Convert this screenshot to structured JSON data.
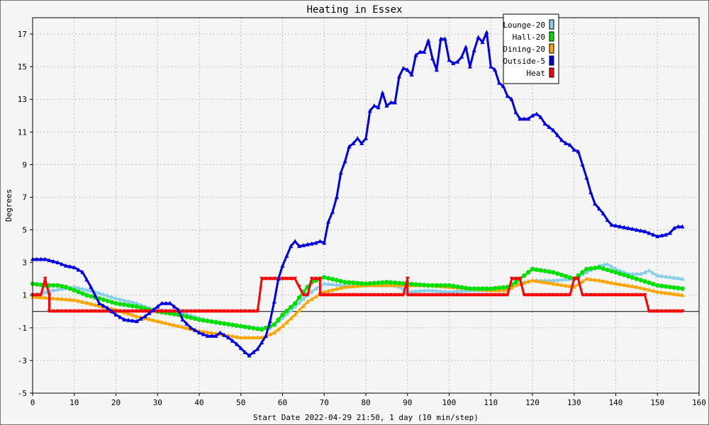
{
  "chart_data": {
    "type": "line",
    "title": "Heating in Essex",
    "ylabel": "Degrees",
    "xlabel": "Start Date 2022-04-29 21:50, 1 day (10 min/step)",
    "xlim": [
      0,
      160
    ],
    "ylim": [
      -5,
      18
    ],
    "xticks": [
      "0",
      "10",
      "20",
      "30",
      "40",
      "50",
      "60",
      "70",
      "80",
      "90",
      "100",
      "110",
      "120",
      "130",
      "140",
      "150",
      "160"
    ],
    "yticks": [
      "-5",
      "-3",
      "-1",
      "1",
      "3",
      "5",
      "7",
      "9",
      "11",
      "13",
      "15",
      "17"
    ],
    "grid": true,
    "legend_position": "top-right",
    "series": [
      {
        "name": "Lounge-20",
        "color": "#87ceeb",
        "marker": "triangle",
        "points": [
          [
            0,
            1.0
          ],
          [
            5,
            1.3
          ],
          [
            10,
            1.5
          ],
          [
            15,
            1.2
          ],
          [
            20,
            0.8
          ],
          [
            25,
            0.5
          ],
          [
            28,
            0.2
          ],
          [
            30,
            0.1
          ],
          [
            35,
            0.0
          ],
          [
            40,
            -0.4
          ],
          [
            45,
            -0.7
          ],
          [
            50,
            -0.9
          ],
          [
            54,
            -1.0
          ],
          [
            57,
            -1.0
          ],
          [
            60,
            -0.4
          ],
          [
            63,
            0.3
          ],
          [
            66,
            1.0
          ],
          [
            68,
            1.4
          ],
          [
            70,
            1.7
          ],
          [
            75,
            1.6
          ],
          [
            80,
            1.6
          ],
          [
            85,
            1.7
          ],
          [
            88,
            1.5
          ],
          [
            90,
            1.2
          ],
          [
            95,
            1.3
          ],
          [
            100,
            1.2
          ],
          [
            105,
            1.3
          ],
          [
            110,
            1.3
          ],
          [
            114,
            1.4
          ],
          [
            116,
            1.6
          ],
          [
            118,
            1.8
          ],
          [
            120,
            1.9
          ],
          [
            125,
            1.9
          ],
          [
            130,
            2.0
          ],
          [
            133,
            2.4
          ],
          [
            136,
            2.8
          ],
          [
            138,
            2.9
          ],
          [
            140,
            2.6
          ],
          [
            143,
            2.3
          ],
          [
            146,
            2.3
          ],
          [
            148,
            2.5
          ],
          [
            150,
            2.2
          ],
          [
            153,
            2.1
          ],
          [
            156,
            2.0
          ]
        ]
      },
      {
        "name": "Hall-20",
        "color": "#00e000",
        "marker": "circle",
        "points": [
          [
            0,
            1.7
          ],
          [
            3,
            1.6
          ],
          [
            6,
            1.6
          ],
          [
            8,
            1.5
          ],
          [
            10,
            1.3
          ],
          [
            13,
            1.0
          ],
          [
            16,
            0.8
          ],
          [
            20,
            0.5
          ],
          [
            25,
            0.3
          ],
          [
            30,
            0.0
          ],
          [
            35,
            -0.2
          ],
          [
            40,
            -0.5
          ],
          [
            45,
            -0.7
          ],
          [
            50,
            -0.9
          ],
          [
            55,
            -1.1
          ],
          [
            58,
            -0.8
          ],
          [
            60,
            -0.2
          ],
          [
            63,
            0.5
          ],
          [
            65,
            1.2
          ],
          [
            67,
            1.8
          ],
          [
            70,
            2.1
          ],
          [
            75,
            1.8
          ],
          [
            80,
            1.7
          ],
          [
            85,
            1.8
          ],
          [
            90,
            1.7
          ],
          [
            95,
            1.6
          ],
          [
            100,
            1.6
          ],
          [
            105,
            1.4
          ],
          [
            110,
            1.4
          ],
          [
            114,
            1.5
          ],
          [
            116,
            1.8
          ],
          [
            118,
            2.2
          ],
          [
            120,
            2.6
          ],
          [
            125,
            2.4
          ],
          [
            130,
            2.0
          ],
          [
            133,
            2.6
          ],
          [
            136,
            2.7
          ],
          [
            140,
            2.4
          ],
          [
            145,
            2.0
          ],
          [
            150,
            1.6
          ],
          [
            156,
            1.4
          ]
        ]
      },
      {
        "name": "Dining-20",
        "color": "#ffa500",
        "marker": "triangle",
        "points": [
          [
            0,
            0.9
          ],
          [
            5,
            0.8
          ],
          [
            10,
            0.7
          ],
          [
            15,
            0.4
          ],
          [
            20,
            0.1
          ],
          [
            25,
            -0.3
          ],
          [
            30,
            -0.6
          ],
          [
            35,
            -0.9
          ],
          [
            40,
            -1.2
          ],
          [
            45,
            -1.4
          ],
          [
            50,
            -1.6
          ],
          [
            55,
            -1.6
          ],
          [
            58,
            -1.3
          ],
          [
            60,
            -0.9
          ],
          [
            63,
            -0.2
          ],
          [
            66,
            0.6
          ],
          [
            70,
            1.2
          ],
          [
            75,
            1.5
          ],
          [
            80,
            1.6
          ],
          [
            85,
            1.6
          ],
          [
            90,
            1.6
          ],
          [
            95,
            1.6
          ],
          [
            100,
            1.5
          ],
          [
            105,
            1.4
          ],
          [
            110,
            1.3
          ],
          [
            114,
            1.3
          ],
          [
            116,
            1.6
          ],
          [
            120,
            1.9
          ],
          [
            125,
            1.7
          ],
          [
            130,
            1.5
          ],
          [
            133,
            2.0
          ],
          [
            136,
            1.9
          ],
          [
            140,
            1.7
          ],
          [
            145,
            1.5
          ],
          [
            150,
            1.2
          ],
          [
            156,
            1.0
          ]
        ]
      },
      {
        "name": "Outside-5",
        "color": "#0000e0",
        "marker": "triangle",
        "points": [
          [
            0,
            3.2
          ],
          [
            3,
            3.2
          ],
          [
            6,
            3.0
          ],
          [
            8,
            2.8
          ],
          [
            10,
            2.7
          ],
          [
            12,
            2.4
          ],
          [
            14,
            1.5
          ],
          [
            16,
            0.5
          ],
          [
            18,
            0.2
          ],
          [
            20,
            -0.2
          ],
          [
            22,
            -0.5
          ],
          [
            25,
            -0.6
          ],
          [
            27,
            -0.3
          ],
          [
            29,
            0.1
          ],
          [
            31,
            0.5
          ],
          [
            33,
            0.5
          ],
          [
            35,
            0.1
          ],
          [
            36,
            -0.5
          ],
          [
            38,
            -1.0
          ],
          [
            40,
            -1.3
          ],
          [
            42,
            -1.5
          ],
          [
            44,
            -1.5
          ],
          [
            45,
            -1.3
          ],
          [
            47,
            -1.6
          ],
          [
            49,
            -2.0
          ],
          [
            51,
            -2.5
          ],
          [
            52,
            -2.7
          ],
          [
            54,
            -2.3
          ],
          [
            56,
            -1.5
          ],
          [
            57,
            -0.6
          ],
          [
            58,
            0.6
          ],
          [
            59,
            2.0
          ],
          [
            60,
            2.8
          ],
          [
            62,
            4.0
          ],
          [
            63,
            4.3
          ],
          [
            64,
            4.0
          ],
          [
            66,
            4.1
          ],
          [
            68,
            4.2
          ],
          [
            69,
            4.3
          ],
          [
            70,
            4.2
          ],
          [
            71,
            5.5
          ],
          [
            72,
            6.1
          ],
          [
            73,
            7.0
          ],
          [
            74,
            8.5
          ],
          [
            75,
            9.2
          ],
          [
            76,
            10.1
          ],
          [
            77,
            10.3
          ],
          [
            78,
            10.6
          ],
          [
            79,
            10.3
          ],
          [
            80,
            10.6
          ],
          [
            81,
            12.3
          ],
          [
            82,
            12.6
          ],
          [
            83,
            12.5
          ],
          [
            84,
            13.4
          ],
          [
            85,
            12.6
          ],
          [
            86,
            12.8
          ],
          [
            87,
            12.8
          ],
          [
            88,
            14.4
          ],
          [
            89,
            14.9
          ],
          [
            90,
            14.8
          ],
          [
            91,
            14.5
          ],
          [
            92,
            15.7
          ],
          [
            93,
            15.9
          ],
          [
            94,
            15.9
          ],
          [
            95,
            16.6
          ],
          [
            96,
            15.5
          ],
          [
            97,
            14.8
          ],
          [
            98,
            16.7
          ],
          [
            99,
            16.7
          ],
          [
            100,
            15.4
          ],
          [
            101,
            15.2
          ],
          [
            102,
            15.3
          ],
          [
            103,
            15.6
          ],
          [
            104,
            16.2
          ],
          [
            105,
            15.0
          ],
          [
            106,
            16.0
          ],
          [
            107,
            16.8
          ],
          [
            108,
            16.5
          ],
          [
            109,
            17.1
          ],
          [
            110,
            15.0
          ],
          [
            111,
            14.8
          ],
          [
            112,
            14.0
          ],
          [
            113,
            13.8
          ],
          [
            114,
            13.2
          ],
          [
            115,
            13.0
          ],
          [
            116,
            12.2
          ],
          [
            117,
            11.8
          ],
          [
            119,
            11.8
          ],
          [
            120,
            12.0
          ],
          [
            121,
            12.1
          ],
          [
            122,
            11.9
          ],
          [
            123,
            11.5
          ],
          [
            125,
            11.1
          ],
          [
            126,
            10.8
          ],
          [
            127,
            10.5
          ],
          [
            128,
            10.3
          ],
          [
            129,
            10.2
          ],
          [
            130,
            9.9
          ],
          [
            131,
            9.8
          ],
          [
            132,
            9.0
          ],
          [
            133,
            8.2
          ],
          [
            134,
            7.3
          ],
          [
            135,
            6.6
          ],
          [
            136,
            6.3
          ],
          [
            137,
            6.0
          ],
          [
            138,
            5.6
          ],
          [
            139,
            5.3
          ],
          [
            141,
            5.2
          ],
          [
            143,
            5.1
          ],
          [
            145,
            5.0
          ],
          [
            147,
            4.9
          ],
          [
            149,
            4.7
          ],
          [
            150,
            4.6
          ],
          [
            152,
            4.7
          ],
          [
            153,
            4.8
          ],
          [
            154,
            5.1
          ],
          [
            155,
            5.2
          ],
          [
            156,
            5.2
          ]
        ]
      },
      {
        "name": "Heat",
        "color": "#ff0000",
        "marker": "triangle-down",
        "points": [
          [
            0,
            1
          ],
          [
            2,
            1
          ],
          [
            3,
            2
          ],
          [
            4,
            1
          ],
          [
            4,
            0
          ],
          [
            54,
            0
          ],
          [
            55,
            2
          ],
          [
            63,
            2
          ],
          [
            65,
            1
          ],
          [
            66,
            1
          ],
          [
            67,
            2
          ],
          [
            69,
            2
          ],
          [
            69,
            1
          ],
          [
            89,
            1
          ],
          [
            90,
            2
          ],
          [
            90,
            1
          ],
          [
            114,
            1
          ],
          [
            115,
            2
          ],
          [
            117,
            2
          ],
          [
            118,
            1
          ],
          [
            129,
            1
          ],
          [
            130,
            2
          ],
          [
            131,
            2
          ],
          [
            132,
            1
          ],
          [
            147,
            1
          ],
          [
            148,
            0
          ],
          [
            156,
            0
          ]
        ]
      }
    ]
  }
}
